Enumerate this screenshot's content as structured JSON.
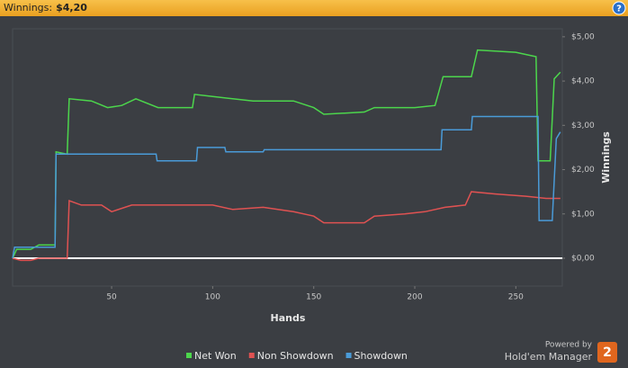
{
  "header": {
    "label": "Winnings:",
    "value": "$4,20"
  },
  "branding": {
    "powered": "Powered by",
    "product": "Hold'em Manager",
    "logo": "2"
  },
  "chart_data": {
    "type": "line",
    "x_label": "Hands",
    "y_label": "Winnings",
    "xlim": [
      1,
      273
    ],
    "xticks": [
      50,
      100,
      150,
      200,
      250
    ],
    "ylim": [
      -0.63,
      5.18
    ],
    "yticks": [
      {
        "value": 5,
        "label": "$5,00"
      },
      {
        "value": 4,
        "label": "$4,00"
      },
      {
        "value": 3,
        "label": "$3,00"
      },
      {
        "value": 2,
        "label": "$2,00"
      },
      {
        "value": 1,
        "label": "$1,00"
      },
      {
        "value": 0,
        "label": "$0,00"
      }
    ],
    "grid": false,
    "legend": "bottom",
    "series": [
      {
        "name": "Net Won",
        "color": "#4cd64c",
        "x": [
          1,
          3,
          10,
          14,
          22,
          22.5,
          28,
          29,
          40,
          48,
          55,
          62,
          73,
          90,
          91,
          100,
          120,
          140,
          150,
          155,
          175,
          180,
          200,
          210,
          214,
          228,
          231,
          250,
          260,
          261,
          267,
          269,
          272
        ],
        "values": [
          0,
          0.2,
          0.2,
          0.3,
          0.3,
          2.4,
          2.35,
          3.6,
          3.55,
          3.4,
          3.45,
          3.6,
          3.4,
          3.4,
          3.7,
          3.65,
          3.55,
          3.55,
          3.4,
          3.25,
          3.3,
          3.4,
          3.4,
          3.45,
          4.1,
          4.1,
          4.7,
          4.65,
          4.55,
          2.2,
          2.2,
          4.05,
          4.2
        ]
      },
      {
        "name": "Non Showdown",
        "color": "#e05252",
        "x": [
          1,
          5,
          10,
          14,
          28,
          29,
          35,
          45,
          50,
          60,
          100,
          110,
          125,
          140,
          150,
          155,
          175,
          180,
          195,
          205,
          215,
          225,
          228,
          240,
          255,
          265,
          272
        ],
        "values": [
          0,
          -0.05,
          -0.05,
          0,
          0,
          1.3,
          1.2,
          1.2,
          1.05,
          1.2,
          1.2,
          1.1,
          1.15,
          1.05,
          0.95,
          0.8,
          0.8,
          0.95,
          1.0,
          1.05,
          1.15,
          1.2,
          1.5,
          1.45,
          1.4,
          1.35,
          1.35
        ]
      },
      {
        "name": "Showdown",
        "color": "#4a9bd8",
        "x": [
          1,
          2,
          22,
          22.5,
          72,
          72.5,
          92,
          92.5,
          106,
          106.5,
          125,
          125.5,
          213,
          213.5,
          228,
          228.5,
          261,
          261.5,
          268,
          270,
          272
        ],
        "values": [
          0,
          0.25,
          0.25,
          2.35,
          2.35,
          2.2,
          2.2,
          2.5,
          2.5,
          2.4,
          2.4,
          2.45,
          2.45,
          2.9,
          2.9,
          3.2,
          3.2,
          0.85,
          0.85,
          2.7,
          2.85
        ]
      }
    ]
  }
}
